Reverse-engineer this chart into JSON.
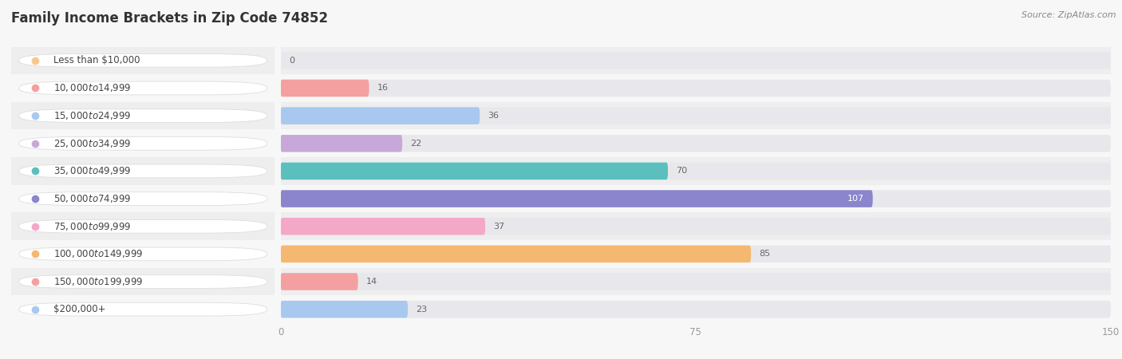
{
  "title": "Family Income Brackets in Zip Code 74852",
  "source": "Source: ZipAtlas.com",
  "categories": [
    "Less than $10,000",
    "$10,000 to $14,999",
    "$15,000 to $24,999",
    "$25,000 to $34,999",
    "$35,000 to $49,999",
    "$50,000 to $74,999",
    "$75,000 to $99,999",
    "$100,000 to $149,999",
    "$150,000 to $199,999",
    "$200,000+"
  ],
  "values": [
    0,
    16,
    36,
    22,
    70,
    107,
    37,
    85,
    14,
    23
  ],
  "bar_colors": [
    "#F5C88E",
    "#F4A0A0",
    "#A8C8F0",
    "#C8A8D8",
    "#5BBFBE",
    "#8A85CC",
    "#F4A8C8",
    "#F5B870",
    "#F4A0A0",
    "#A8C8F0"
  ],
  "circle_colors": [
    "#F5C88E",
    "#F4A0A0",
    "#A8C8F0",
    "#C8A8D8",
    "#5BBFBE",
    "#8A85CC",
    "#F4A8C8",
    "#F5B870",
    "#F4A0A0",
    "#A8C8F0"
  ],
  "xlim": [
    0,
    150
  ],
  "xticks": [
    0,
    75,
    150
  ],
  "bg_color": "#f7f7f7",
  "row_bg_even": "#f0f0f0",
  "row_bg_odd": "#fafafa",
  "bar_track_color": "#e8e8ec",
  "title_fontsize": 12,
  "label_fontsize": 8.5,
  "value_fontsize": 8,
  "tick_fontsize": 8.5,
  "source_fontsize": 8
}
